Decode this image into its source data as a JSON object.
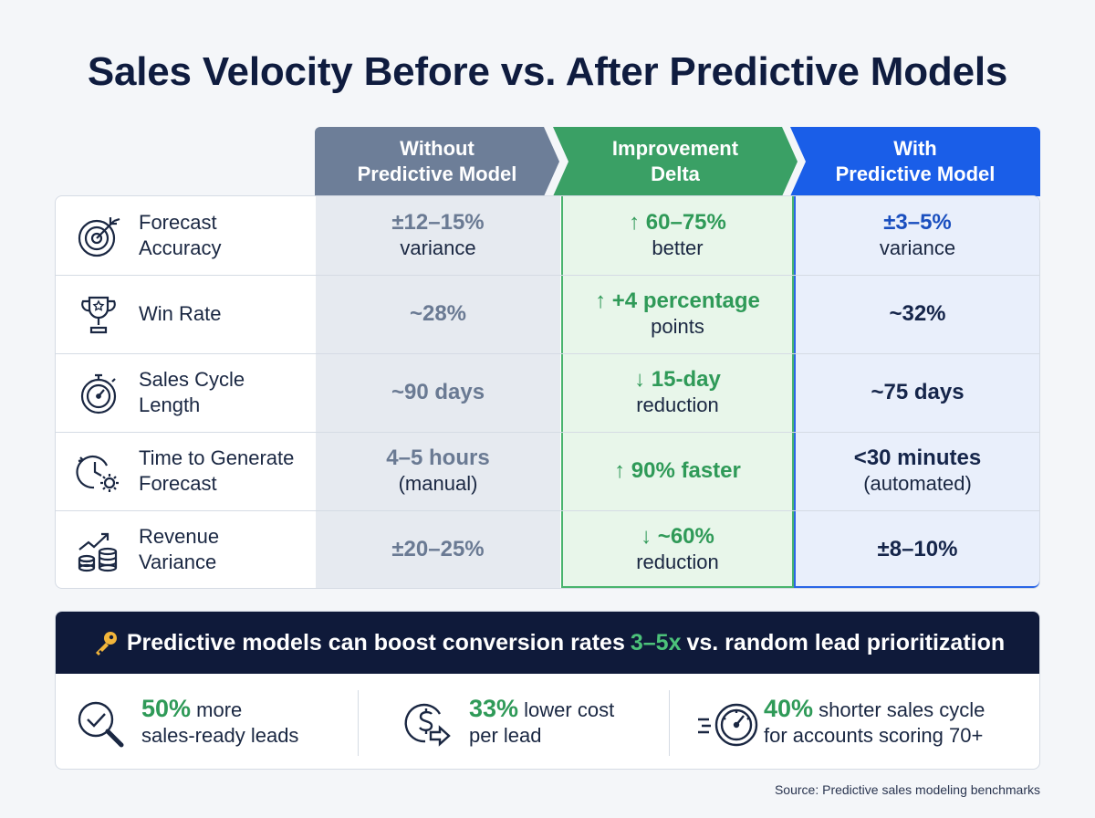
{
  "title": "Sales Velocity Before vs. After Predictive Models",
  "columns": {
    "without": "Without\nPredictive Model",
    "delta": "Improvement\nDelta",
    "with": "With\nPredictive Model"
  },
  "rows": [
    {
      "icon": "target-icon",
      "label": "Forecast\nAccuracy",
      "without": {
        "main": "±12–15%",
        "sub": "variance"
      },
      "delta": {
        "main": "↑ 60–75%",
        "sub": "better"
      },
      "with": {
        "main": "±3–5%",
        "sub": "variance"
      }
    },
    {
      "icon": "trophy-icon",
      "label": "Win Rate",
      "without": {
        "main": "~28%",
        "sub": ""
      },
      "delta": {
        "main": "↑ +4 percentage",
        "sub": "points"
      },
      "with": {
        "main": "~32%",
        "sub": ""
      }
    },
    {
      "icon": "stopwatch-icon",
      "label": "Sales Cycle\nLength",
      "without": {
        "main": "~90 days",
        "sub": ""
      },
      "delta": {
        "main": "↓ 15-day",
        "sub": "reduction"
      },
      "with": {
        "main": "~75 days",
        "sub": ""
      }
    },
    {
      "icon": "clock-gear-icon",
      "label": "Time to Generate\nForecast",
      "without": {
        "main": "4–5 hours",
        "sub": "(manual)"
      },
      "delta": {
        "main": "↑ 90% faster",
        "sub": ""
      },
      "with": {
        "main": "<30 minutes",
        "sub": "(automated)"
      }
    },
    {
      "icon": "revenue-coins-icon",
      "label": "Revenue\nVariance",
      "without": {
        "main": "±20–25%",
        "sub": ""
      },
      "delta": {
        "main": "↓ ~60%",
        "sub": "reduction"
      },
      "with": {
        "main": "±8–10%",
        "sub": ""
      }
    }
  ],
  "banner": {
    "icon": "key-icon",
    "pre": "Predictive models can boost conversion rates",
    "highlight": "3–5x",
    "post": "vs. random lead prioritization"
  },
  "stats": [
    {
      "icon": "search-check-icon",
      "number": "50%",
      "line1": "more",
      "line2": "sales-ready leads"
    },
    {
      "icon": "dollar-arrow-icon",
      "number": "33%",
      "line1": "lower cost",
      "line2": "per lead"
    },
    {
      "icon": "speedometer-icon",
      "number": "40%",
      "line1": "shorter sales cycle",
      "line2": "for accounts scoring 70+"
    }
  ],
  "source": "Source: Predictive sales modeling benchmarks",
  "colors": {
    "navy": "#0f1a3a",
    "slate": "#6d7e98",
    "green": "#3aa065",
    "blue": "#1a5ee8"
  }
}
